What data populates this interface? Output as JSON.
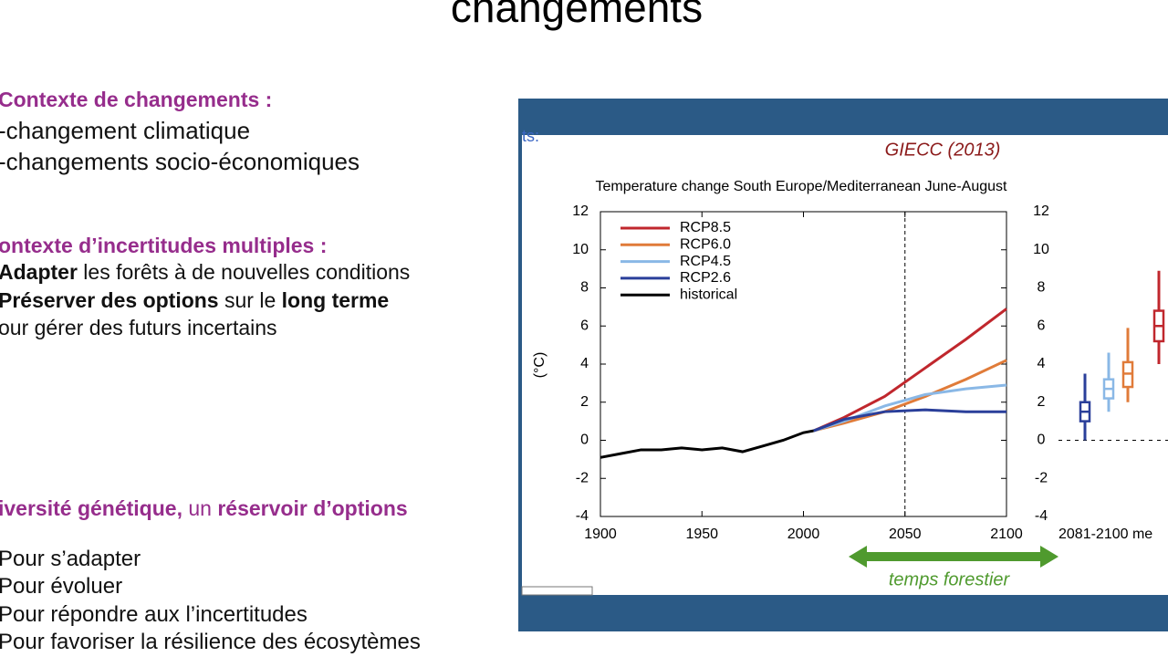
{
  "slide": {
    "title": "changements",
    "sections": [
      {
        "heading": [
          {
            "text": "Contexte de changements :",
            "bold": true
          }
        ],
        "lines": [
          [
            {
              "text": "-changement climatique",
              "bold": false
            }
          ],
          [
            {
              "text": "-changements socio-économiques",
              "bold": false
            }
          ]
        ]
      },
      {
        "heading": [
          {
            "text": "ontexte d’incertitudes multiples :",
            "bold": true
          }
        ],
        "lines": [
          [
            {
              "text": "Adapter",
              "bold": true
            },
            {
              "text": " les forêts à de nouvelles conditions",
              "bold": false
            }
          ],
          [
            {
              "text": "Préserver des options",
              "bold": true
            },
            {
              "text": " sur le ",
              "bold": false
            },
            {
              "text": "long terme",
              "bold": true
            }
          ],
          [
            {
              "text": "our gérer des futurs incertains",
              "bold": false
            }
          ]
        ]
      },
      {
        "heading": [
          {
            "text": "iversité génétique,",
            "bold": true
          },
          {
            "text": " un ",
            "bold": false
          },
          {
            "text": "réservoir d’options",
            "bold": true
          }
        ],
        "lines": [
          [
            {
              "text": "Pour s’adapter",
              "bold": false
            }
          ],
          [
            {
              "text": "Pour évoluer",
              "bold": false
            }
          ],
          [
            {
              "text": "Pour répondre aux l’incertitudes",
              "bold": false
            }
          ],
          [
            {
              "text": "Pour favoriser la résilience des écosytèmes",
              "bold": false
            }
          ]
        ]
      }
    ],
    "fragment": "ts:"
  },
  "chart_data": {
    "type": "line",
    "title": "Temperature change South Europe/Mediterranean June-August",
    "source": "GIECC (2013)",
    "ylabel": "(°C)",
    "annotation": "temps forestier",
    "box_label": "2081-2100 me",
    "reference_x": 2050,
    "xlim": [
      1900,
      2100
    ],
    "xticks": [
      1900,
      1950,
      2000,
      2050,
      2100
    ],
    "ylim": [
      -4,
      12
    ],
    "yticks": [
      -4,
      -2,
      0,
      2,
      4,
      6,
      8,
      10,
      12
    ],
    "y2lim": [
      -4,
      12
    ],
    "y2ticks": [
      -4,
      -2,
      0,
      2,
      4,
      6,
      8,
      10,
      12
    ],
    "series": [
      {
        "name": "RCP8.5",
        "color": "#c0272d",
        "x": [
          2005,
          2020,
          2040,
          2060,
          2080,
          2100
        ],
        "values": [
          0.5,
          1.2,
          2.3,
          3.8,
          5.3,
          6.9
        ],
        "box": {
          "low": 4,
          "q1": 5.2,
          "median": 6,
          "q3": 6.8,
          "high": 8.9
        }
      },
      {
        "name": "RCP6.0",
        "color": "#e07b39",
        "x": [
          2005,
          2020,
          2040,
          2060,
          2080,
          2100
        ],
        "values": [
          0.5,
          0.9,
          1.5,
          2.3,
          3.2,
          4.2
        ],
        "box": {
          "low": 2,
          "q1": 2.8,
          "median": 3.5,
          "q3": 4.1,
          "high": 5.9
        }
      },
      {
        "name": "RCP4.5",
        "color": "#8ab8e6",
        "x": [
          2005,
          2020,
          2040,
          2060,
          2080,
          2100
        ],
        "values": [
          0.5,
          1.0,
          1.8,
          2.4,
          2.7,
          2.9
        ],
        "box": {
          "low": 1.5,
          "q1": 2.2,
          "median": 2.7,
          "q3": 3.2,
          "high": 4.6
        }
      },
      {
        "name": "RCP2.6",
        "color": "#2a3f9a",
        "x": [
          2005,
          2020,
          2040,
          2060,
          2080,
          2100
        ],
        "values": [
          0.5,
          1.1,
          1.5,
          1.6,
          1.5,
          1.5
        ],
        "box": {
          "low": 0,
          "q1": 1,
          "median": 1.5,
          "q3": 2,
          "high": 3.5
        }
      },
      {
        "name": "historical",
        "color": "#000000",
        "x": [
          1900,
          1910,
          1920,
          1930,
          1940,
          1950,
          1960,
          1970,
          1980,
          1990,
          2000,
          2005
        ],
        "values": [
          -0.9,
          -0.7,
          -0.5,
          -0.5,
          -0.4,
          -0.5,
          -0.4,
          -0.6,
          -0.3,
          0.0,
          0.4,
          0.5
        ]
      }
    ]
  }
}
